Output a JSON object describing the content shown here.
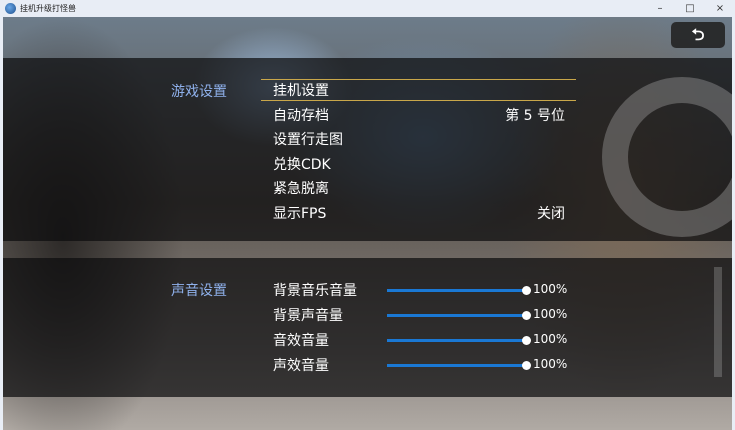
{
  "window": {
    "title": "挂机升级打怪兽",
    "minimize": "–",
    "maximize": "□",
    "close": "×"
  },
  "back_button": {
    "icon": "back-arrow-icon",
    "glyph": "⮌"
  },
  "game_settings": {
    "label": "游戏设置",
    "items": [
      {
        "label": "挂机设置",
        "value": "",
        "selected": true
      },
      {
        "label": "自动存档",
        "value": "第 5 号位"
      },
      {
        "label": "设置行走图",
        "value": ""
      },
      {
        "label": "兑换CDK",
        "value": ""
      },
      {
        "label": "紧急脱离",
        "value": ""
      },
      {
        "label": "显示FPS",
        "value": "关闭"
      }
    ]
  },
  "sound_settings": {
    "label": "声音设置",
    "items": [
      {
        "label": "背景音乐音量",
        "value": "100%",
        "level": 1.0
      },
      {
        "label": "背景声音量",
        "value": "100%",
        "level": 1.0
      },
      {
        "label": "音效音量",
        "value": "100%",
        "level": 1.0
      },
      {
        "label": "声效音量",
        "value": "100%",
        "level": 1.0
      }
    ]
  },
  "colors": {
    "accent": "#1a78d4",
    "selection": "#c9a74a",
    "section": "#8fb1ec"
  }
}
